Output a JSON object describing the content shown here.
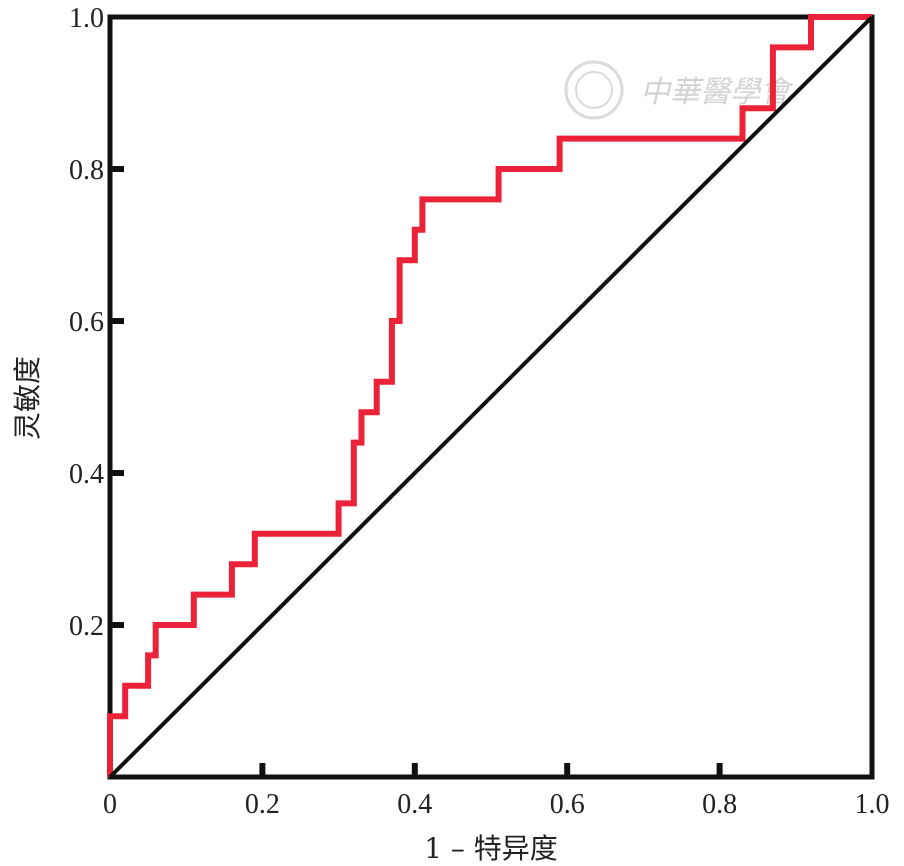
{
  "chart_data": {
    "type": "line",
    "xlabel": "1 – 特异度",
    "ylabel": "灵敏度",
    "xlim": [
      0,
      1
    ],
    "ylim": [
      0,
      1
    ],
    "x_ticks": [
      "0",
      "0.2",
      "0.4",
      "0.6",
      "0.8",
      "1.0"
    ],
    "y_ticks": [
      "0.2",
      "0.4",
      "0.6",
      "0.8",
      "1.0"
    ],
    "grid": false,
    "series": [
      {
        "color": "#ec2239",
        "style": "step",
        "x": [
          0,
          0,
          0.02,
          0.02,
          0.05,
          0.05,
          0.06,
          0.06,
          0.11,
          0.11,
          0.16,
          0.16,
          0.19,
          0.19,
          0.3,
          0.3,
          0.32,
          0.32,
          0.33,
          0.33,
          0.35,
          0.35,
          0.37,
          0.37,
          0.38,
          0.38,
          0.4,
          0.4,
          0.41,
          0.41,
          0.51,
          0.51,
          0.59,
          0.59,
          0.83,
          0.83,
          0.87,
          0.87,
          0.92,
          0.92,
          1.0
        ],
        "y": [
          0,
          0.08,
          0.08,
          0.12,
          0.12,
          0.16,
          0.16,
          0.2,
          0.2,
          0.24,
          0.24,
          0.28,
          0.28,
          0.32,
          0.32,
          0.36,
          0.36,
          0.44,
          0.44,
          0.48,
          0.48,
          0.52,
          0.52,
          0.6,
          0.6,
          0.68,
          0.68,
          0.72,
          0.72,
          0.76,
          0.76,
          0.8,
          0.8,
          0.84,
          0.84,
          0.88,
          0.88,
          0.96,
          0.96,
          1.0,
          1.0
        ]
      },
      {
        "color": "#111111",
        "style": "line",
        "x": [
          0,
          1
        ],
        "y": [
          0,
          1
        ]
      }
    ]
  },
  "watermark": {
    "text": "中華醫學會",
    "color": "#cfcfcf"
  }
}
